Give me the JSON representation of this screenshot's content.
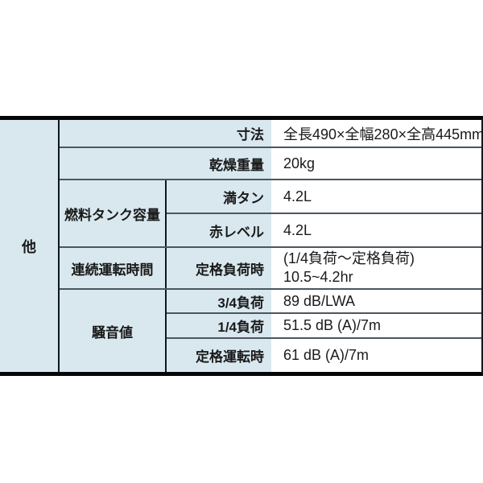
{
  "page": {
    "background_color": "#ffffff"
  },
  "colors": {
    "label_cell_bg": "#d9e8ef",
    "value_cell_bg": "#ffffff",
    "outer_border": "#060606",
    "row_divider": "#4b565e",
    "column_line": "#10171b",
    "text": "#1a1a1a"
  },
  "spec_table": {
    "row_group_label": "他",
    "rows": [
      {
        "label": "寸法",
        "value": "全長490×全幅280×全高445mm"
      },
      {
        "label": "乾燥重量",
        "value": "20kg"
      },
      {
        "sub_group": "燃料タンク容量",
        "label": "満タン",
        "value": "4.2L"
      },
      {
        "label": "赤レベル",
        "value": "4.2L"
      },
      {
        "sub_group": "連続運転時間",
        "label": "定格負荷時",
        "value_lines": [
          "(1/4負荷～定格負荷)",
          "10.5~4.2hr"
        ]
      },
      {
        "sub_group": "騒音値",
        "label": "3/4負荷",
        "value": "89 dB/LWA"
      },
      {
        "label": "1/4負荷",
        "value": "51.5 dB (A)/7m"
      },
      {
        "label": "定格運転時",
        "value": "61 dB (A)/7m"
      }
    ]
  }
}
